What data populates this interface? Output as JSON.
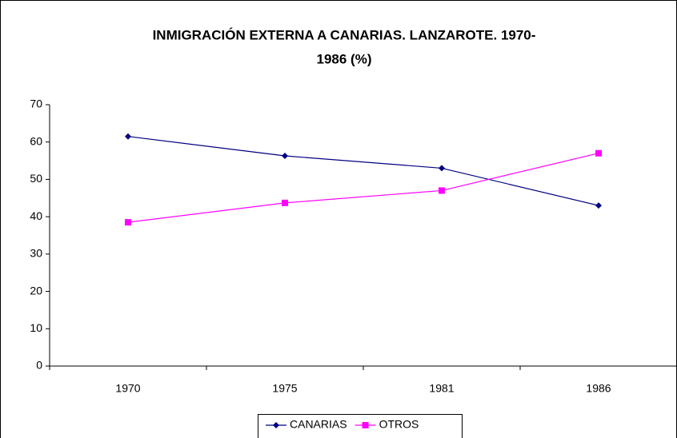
{
  "chart_data": {
    "type": "line",
    "title": [
      "INMIGRACIÓN EXTERNA A CANARIAS. LANZAROTE. 1970-",
      "1986 (%)"
    ],
    "categories": [
      "1970",
      "1975",
      "1981",
      "1986"
    ],
    "series": [
      {
        "name": "CANARIAS",
        "color": "#000080",
        "marker": "diamond",
        "values": [
          61.5,
          56.3,
          53,
          43
        ]
      },
      {
        "name": "OTROS",
        "color": "#ff00ff",
        "marker": "square",
        "values": [
          38.5,
          43.7,
          47,
          57
        ]
      }
    ],
    "ylim": [
      0,
      70
    ],
    "yticks": [
      0,
      10,
      20,
      30,
      40,
      50,
      60,
      70
    ],
    "grid": false,
    "legend": "bottom"
  }
}
